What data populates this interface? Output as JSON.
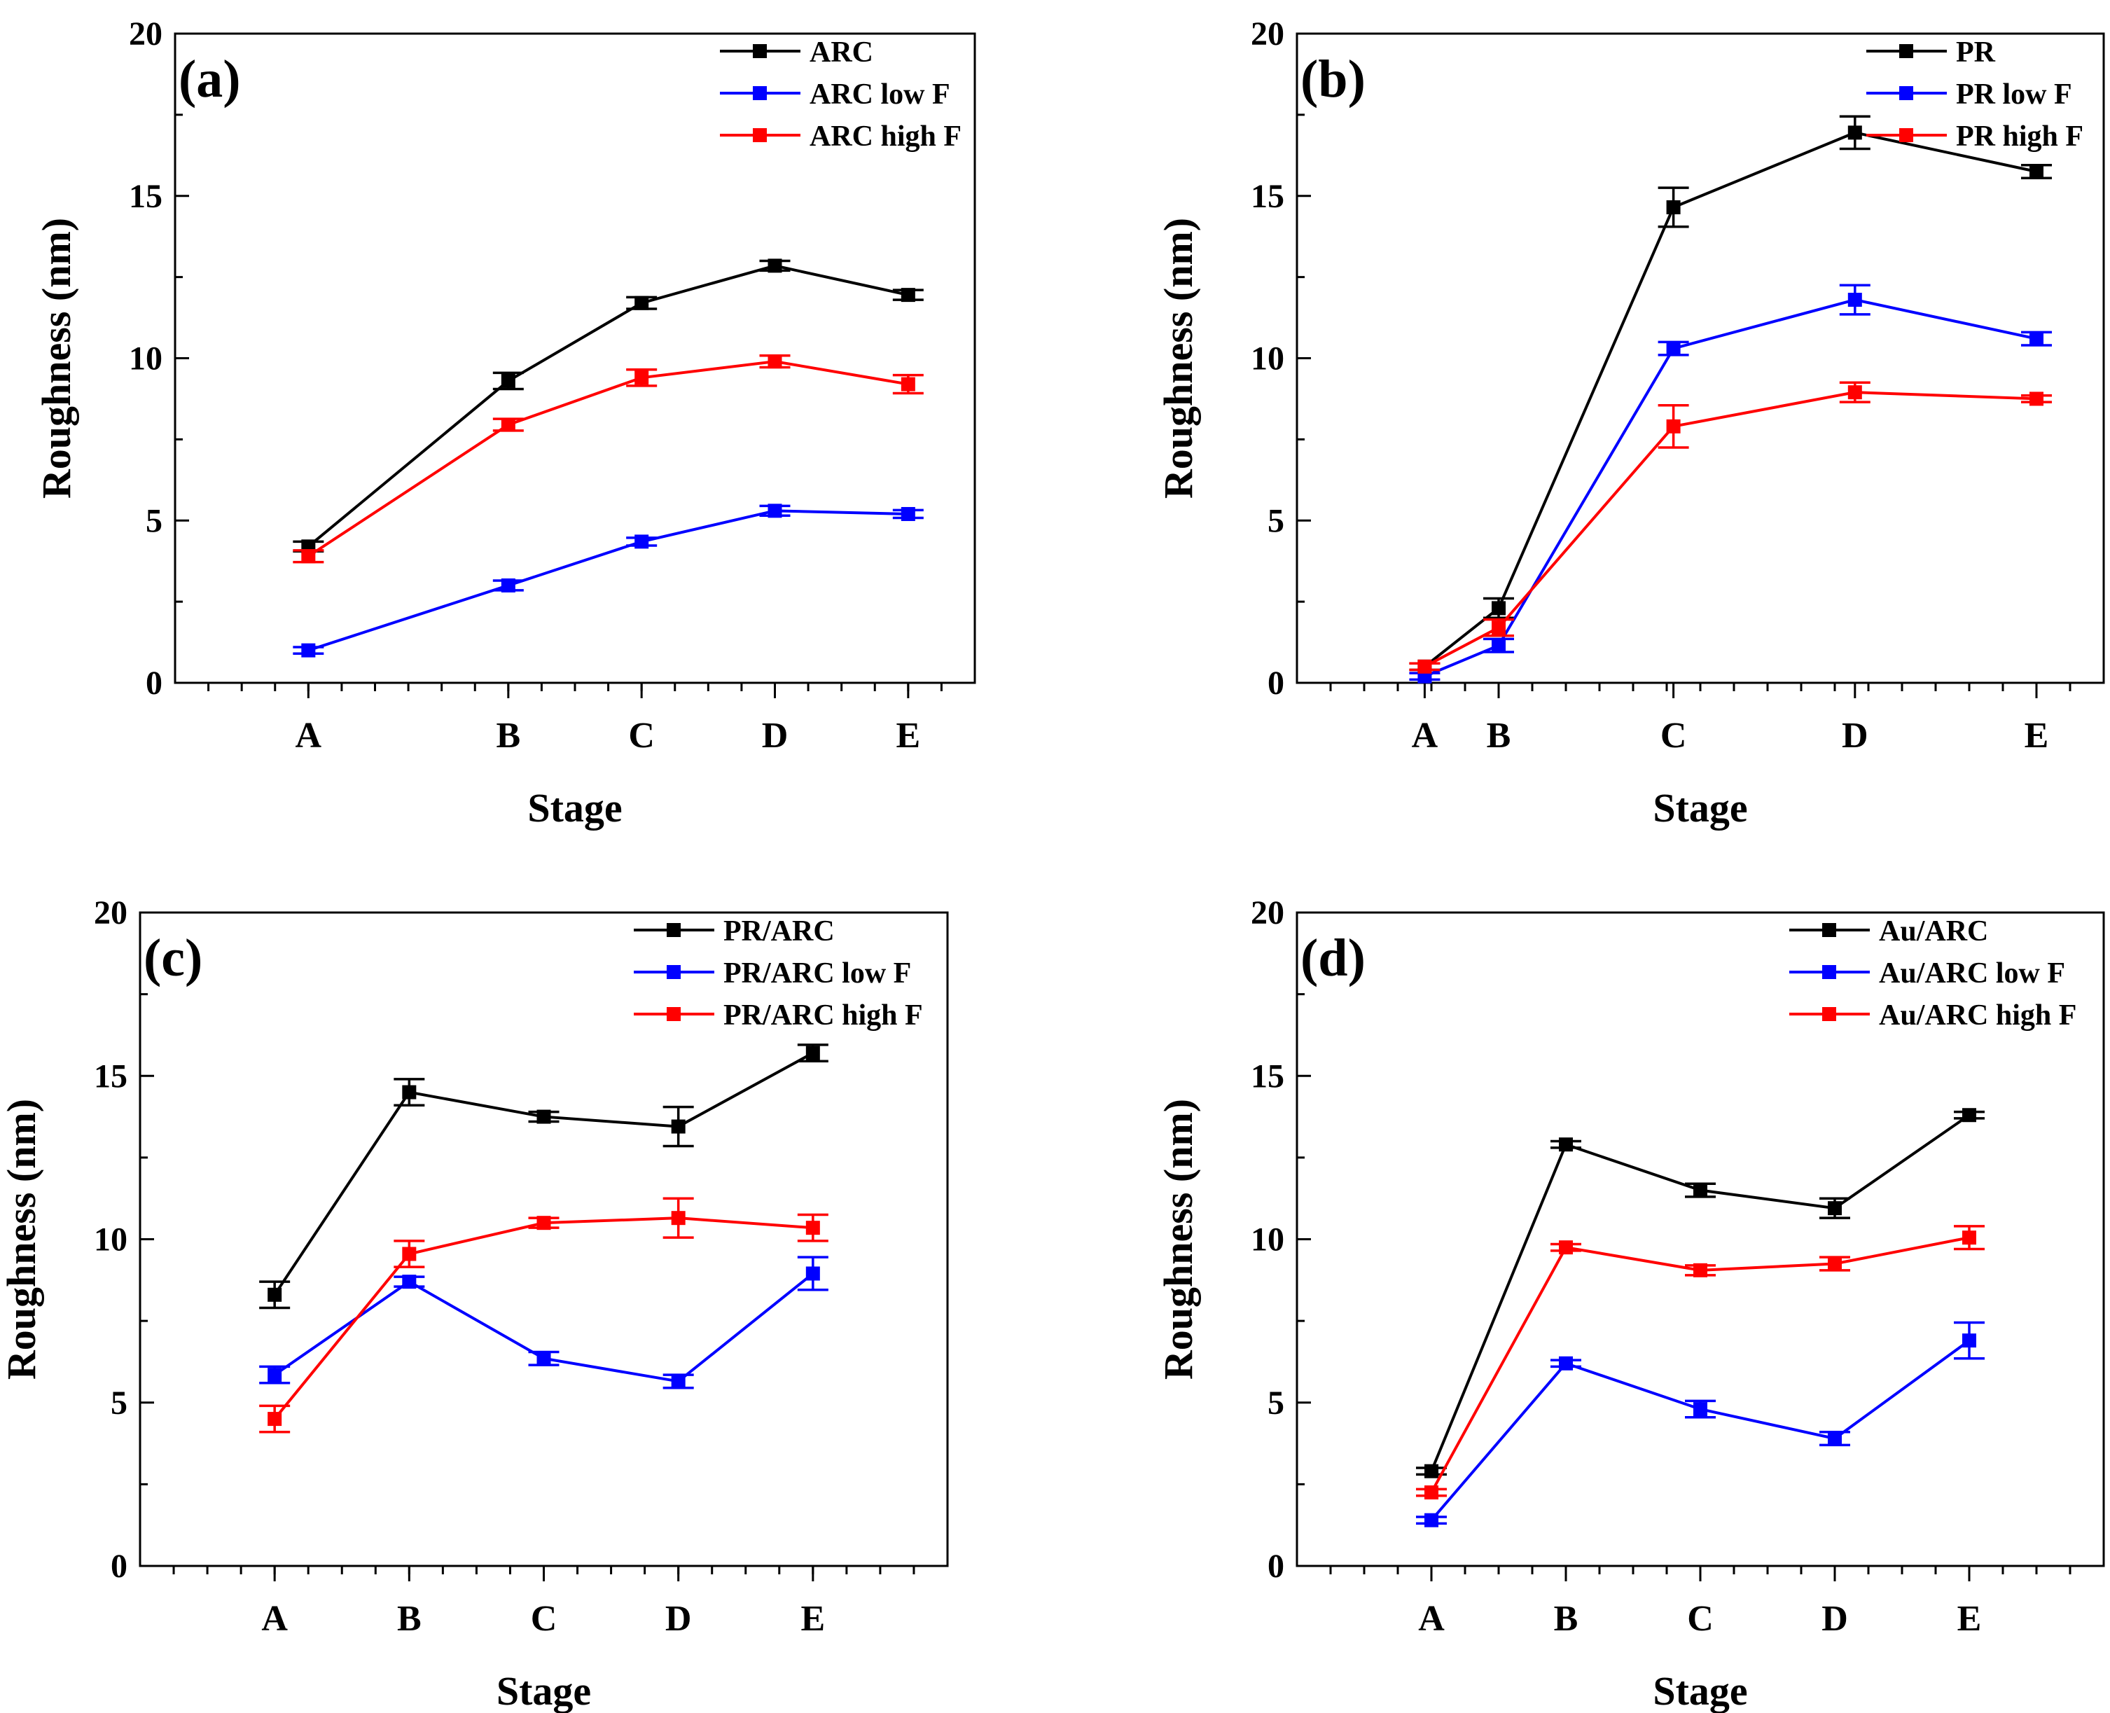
{
  "chart_data": [
    {
      "type": "line",
      "panel_label": "(a)",
      "xlabel": "Stage",
      "ylabel": "Roughness (nm)",
      "categories": [
        "A",
        "B",
        "C",
        "D",
        "E"
      ],
      "x": [
        2,
        5,
        7,
        9,
        11
      ],
      "xlim": [
        0,
        12
      ],
      "ylim": [
        0,
        20
      ],
      "yticks": [
        0,
        5,
        10,
        15,
        20
      ],
      "legend_position": "top-right",
      "series": [
        {
          "name": "ARC",
          "color": "#000000",
          "values": [
            4.2,
            9.3,
            11.7,
            12.85,
            11.95
          ],
          "errors": [
            0.15,
            0.25,
            0.18,
            0.15,
            0.15
          ]
        },
        {
          "name": "ARC low F",
          "color": "#0000ff",
          "values": [
            1.0,
            3.0,
            4.35,
            5.3,
            5.2
          ],
          "errors": [
            0.1,
            0.15,
            0.12,
            0.15,
            0.12
          ]
        },
        {
          "name": "ARC high F",
          "color": "#ff0000",
          "values": [
            3.9,
            7.95,
            9.4,
            9.9,
            9.2
          ],
          "errors": [
            0.18,
            0.18,
            0.25,
            0.18,
            0.28
          ]
        }
      ]
    },
    {
      "type": "line",
      "panel_label": "(b)",
      "xlabel": "Stage",
      "ylabel": "Roughness (nm)",
      "categories": [
        "A",
        "B",
        "C",
        "D",
        "E"
      ],
      "x": [
        1.9,
        3.0,
        5.6,
        8.3,
        11.0
      ],
      "xlim": [
        0,
        12
      ],
      "ylim": [
        0,
        20
      ],
      "yticks": [
        0,
        5,
        10,
        15,
        20
      ],
      "legend_position": "top-right",
      "series": [
        {
          "name": "PR",
          "color": "#000000",
          "values": [
            0.5,
            2.3,
            14.65,
            16.95,
            15.75
          ],
          "errors": [
            0.1,
            0.3,
            0.6,
            0.5,
            0.2
          ]
        },
        {
          "name": "PR low F",
          "color": "#0000ff",
          "values": [
            0.2,
            1.15,
            10.3,
            11.8,
            10.6
          ],
          "errors": [
            0.1,
            0.2,
            0.2,
            0.45,
            0.2
          ]
        },
        {
          "name": "PR high F",
          "color": "#ff0000",
          "values": [
            0.5,
            1.7,
            7.9,
            8.95,
            8.75
          ],
          "errors": [
            0.1,
            0.25,
            0.65,
            0.3,
            0.1
          ]
        }
      ]
    },
    {
      "type": "line",
      "panel_label": "(c)",
      "xlabel": "Stage",
      "ylabel": "Roughness (nm)",
      "categories": [
        "A",
        "B",
        "C",
        "D",
        "E"
      ],
      "x": [
        1,
        2,
        3,
        4,
        5
      ],
      "xlim": [
        0,
        6
      ],
      "ylim": [
        0,
        20
      ],
      "yticks": [
        0,
        5,
        10,
        15,
        20
      ],
      "legend_position": "top-right",
      "series": [
        {
          "name": "PR/ARC",
          "color": "#000000",
          "values": [
            8.3,
            14.5,
            13.75,
            13.45,
            15.7
          ],
          "errors": [
            0.4,
            0.4,
            0.15,
            0.6,
            0.25
          ]
        },
        {
          "name": "PR/ARC low F",
          "color": "#0000ff",
          "values": [
            5.85,
            8.7,
            6.35,
            5.65,
            8.95
          ],
          "errors": [
            0.25,
            0.15,
            0.2,
            0.2,
            0.5
          ]
        },
        {
          "name": "PR/ARC high F",
          "color": "#ff0000",
          "values": [
            4.5,
            9.55,
            10.5,
            10.65,
            10.35
          ],
          "errors": [
            0.4,
            0.4,
            0.15,
            0.6,
            0.4
          ]
        }
      ]
    },
    {
      "type": "line",
      "panel_label": "(d)",
      "xlabel": "Stage",
      "ylabel": "Roughness (nm)",
      "categories": [
        "A",
        "B",
        "C",
        "D",
        "E"
      ],
      "x": [
        1,
        2,
        3,
        4,
        5
      ],
      "xlim": [
        0,
        6
      ],
      "ylim": [
        0,
        20
      ],
      "yticks": [
        0,
        5,
        10,
        15,
        20
      ],
      "legend_position": "top-right",
      "series": [
        {
          "name": "Au/ARC",
          "color": "#000000",
          "values": [
            2.9,
            12.9,
            11.5,
            10.95,
            13.8
          ],
          "errors": [
            0.1,
            0.1,
            0.2,
            0.3,
            0.1
          ]
        },
        {
          "name": "Au/ARC low F",
          "color": "#0000ff",
          "values": [
            1.4,
            6.2,
            4.8,
            3.9,
            6.9
          ],
          "errors": [
            0.1,
            0.1,
            0.25,
            0.2,
            0.55
          ]
        },
        {
          "name": "Au/ARC high F",
          "color": "#ff0000",
          "values": [
            2.25,
            9.75,
            9.05,
            9.25,
            10.05
          ],
          "errors": [
            0.1,
            0.1,
            0.15,
            0.2,
            0.35
          ]
        }
      ]
    }
  ]
}
